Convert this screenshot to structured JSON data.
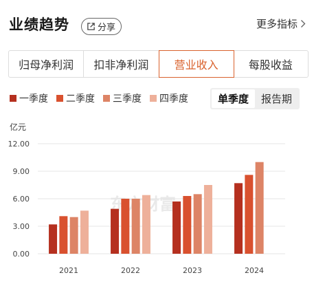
{
  "header": {
    "title": "业绩趋势",
    "share_label": "分享",
    "more_label": "更多指标"
  },
  "tabs": [
    {
      "label": "归母净利润",
      "active": false
    },
    {
      "label": "扣非净利润",
      "active": false
    },
    {
      "label": "营业收入",
      "active": true
    },
    {
      "label": "每股收益",
      "active": false
    }
  ],
  "legend": [
    {
      "label": "一季度",
      "color": "#b5301f"
    },
    {
      "label": "二季度",
      "color": "#d9512f"
    },
    {
      "label": "三季度",
      "color": "#dd8466"
    },
    {
      "label": "四季度",
      "color": "#eeb09a"
    }
  ],
  "toggle": {
    "options": [
      "单季度",
      "报告期"
    ],
    "active": "单季度"
  },
  "watermark": "东方财富",
  "chart_data": {
    "type": "bar",
    "unit": "亿元",
    "categories": [
      "2021",
      "2022",
      "2023",
      "2024"
    ],
    "series": [
      {
        "name": "一季度",
        "values": [
          3.2,
          4.9,
          5.7,
          7.7
        ]
      },
      {
        "name": "二季度",
        "values": [
          4.1,
          6.0,
          6.3,
          8.6
        ]
      },
      {
        "name": "三季度",
        "values": [
          4.0,
          6.0,
          6.5,
          10.0
        ]
      },
      {
        "name": "四季度",
        "values": [
          4.7,
          6.4,
          7.5,
          null
        ]
      }
    ],
    "y_ticks": [
      "12.00",
      "9.00",
      "6.00",
      "3.00",
      "0.00"
    ],
    "ylim": [
      0,
      12
    ],
    "grid": true,
    "legend_position": "top-left"
  }
}
